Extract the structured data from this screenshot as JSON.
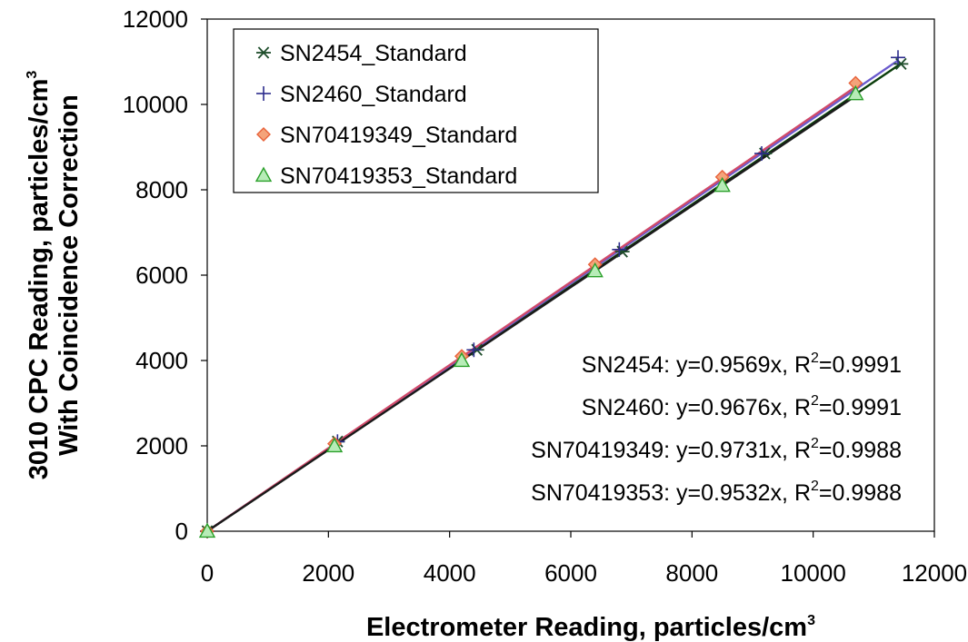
{
  "chart_data": {
    "type": "scatter",
    "xlabel": "Electrometer Reading, particles/cm",
    "xlabel_sup": "3",
    "ylabel_line1": "3010 CPC Reading, particles/cm",
    "ylabel_line1_sup": "3",
    "ylabel_line2": "With Coincidence Correction",
    "xlim": [
      0,
      12000
    ],
    "ylim": [
      0,
      12000
    ],
    "xticks": [
      "0",
      "2000",
      "4000",
      "6000",
      "8000",
      "10000",
      "12000"
    ],
    "yticks": [
      "0",
      "2000",
      "4000",
      "6000",
      "8000",
      "10000",
      "12000"
    ],
    "grid": false,
    "legend_position": "top-left",
    "series": [
      {
        "name": "SN2454_Standard",
        "marker": "asterisk",
        "color": "#1e4d2b",
        "slope": 0.9569,
        "x": [
          0,
          2150,
          4450,
          6850,
          9200,
          11450
        ],
        "y": [
          0,
          2100,
          4250,
          6550,
          8850,
          10950
        ]
      },
      {
        "name": "SN2460_Standard",
        "marker": "plus",
        "color": "#2b2b8c",
        "slope": 0.9676,
        "x": [
          0,
          2150,
          4400,
          6800,
          9150,
          11400
        ],
        "y": [
          0,
          2100,
          4250,
          6600,
          8850,
          11100
        ]
      },
      {
        "name": "SN70419349_Standard",
        "marker": "diamond",
        "color": "#e8623a",
        "fill": "#f4a37a",
        "slope": 0.9731,
        "x": [
          0,
          2100,
          4200,
          6400,
          8500,
          10700
        ],
        "y": [
          0,
          2050,
          4100,
          6250,
          8300,
          10500
        ]
      },
      {
        "name": "SN70419353_Standard",
        "marker": "triangle",
        "color": "#2aa02a",
        "fill": "#b7ecb7",
        "slope": 0.9532,
        "x": [
          0,
          2100,
          4200,
          6400,
          8500,
          10700
        ],
        "y": [
          0,
          2000,
          4000,
          6100,
          8100,
          10250
        ]
      }
    ],
    "annotations": [
      {
        "label": "SN2454: y=0.9569x, R",
        "sup": "2",
        "tail": "=0.9991"
      },
      {
        "label": "SN2460: y=0.9676x, R",
        "sup": "2",
        "tail": "=0.9991"
      },
      {
        "label": "SN70419349: y=0.9731x, R",
        "sup": "2",
        "tail": "=0.9988"
      },
      {
        "label": "SN70419353: y=0.9532x, R",
        "sup": "2",
        "tail": "=0.9988"
      }
    ]
  }
}
